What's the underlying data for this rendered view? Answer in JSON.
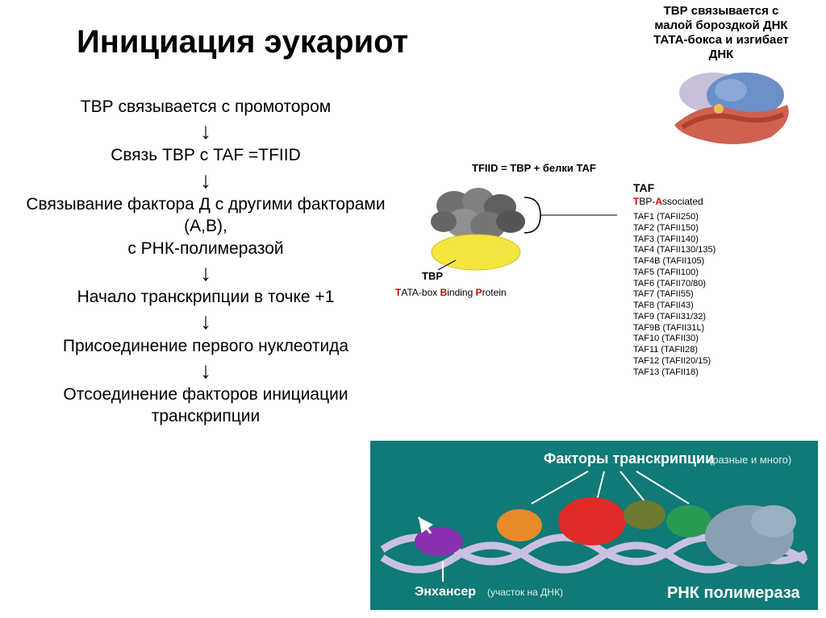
{
  "title": "Инициация эукариот",
  "flow_steps": [
    "ТВР связывается с промотором",
    "Связь ТВР с TAF =TFIID",
    "Связывание фактора Д с другими факторами (А,В),\nс РНК-полимеразой",
    "Начало транскрипции в точке +1",
    "Присоединение первого нуклеотида",
    "Отсоединение факторов инициации транскрипции"
  ],
  "tbp_caption": "ТВР связывается с малой бороздкой ДНК ТАТА-бокса и изгибает ДНК",
  "protein_structure": {
    "top_color": "#6b8fc8",
    "top_lobe_light": "#c8c0d8",
    "bottom_color": "#d06050",
    "accent": "#e8c050"
  },
  "tfiid": {
    "formula": "TFIID = TBP + белки TAF",
    "tbp_label": "TBP",
    "tbp_full_pre": "TATA-box ",
    "tbp_full_b": "B",
    "tbp_full_mid": "inding ",
    "tbp_full_p": "P",
    "tbp_full_end": "rotein",
    "tbp_color": "#f5e540",
    "taf_blob_colors": [
      "#707070",
      "#808080",
      "#606060",
      "#909090",
      "#757575",
      "#555555",
      "#656565"
    ]
  },
  "taf": {
    "header": "TAF",
    "sub_t": "T",
    "sub_bp": "BP-",
    "sub_a": "A",
    "sub_rest": "ssociated",
    "items": [
      "TAF1 (TAFII250)",
      "TAF2 (TAFII150)",
      "TAF3 (TAFII140)",
      "TAF4 (TAFII130/135)",
      "TAF4B (TAFII105)",
      "TAF5 (TAFII100)",
      "TAF6 (TAFII70/80)",
      "TAF7 (TAFII55)",
      "TAF8 (TAFII43)",
      "TAF9 (TAFII31/32)",
      "TAF9B (TAFII31L)",
      "TAF10 (TAFII30)",
      "TAF11 (TAFII28)",
      "TAF12 (TAFII20/15)",
      "TAF13 (TAFII18)"
    ]
  },
  "bottom": {
    "bg": "#0f7a76",
    "label_factors": "Факторы транскрипции",
    "label_factors_note": "(разные и много)",
    "label_enhancer": "Энхансер",
    "label_enhancer_note": "(участок на ДНК)",
    "label_rnap": "РНК полимераза",
    "dna_color": "#c9c1e0",
    "tf_colors": {
      "purple": "#8a2fad",
      "orange": "#e88a2a",
      "red": "#e02a2a",
      "olive": "#6b7a2f",
      "green": "#2a9a52",
      "rnap": "#8aa0b0"
    }
  }
}
